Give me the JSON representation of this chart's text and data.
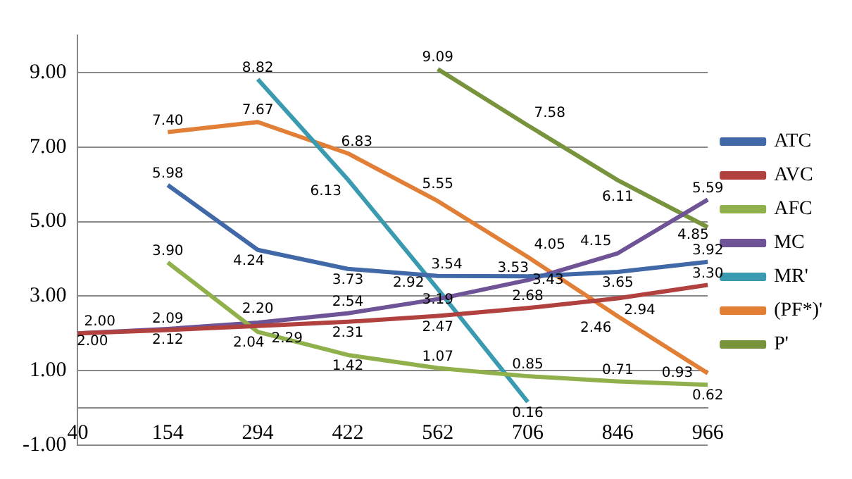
{
  "chart_data": {
    "type": "line",
    "categories": [
      "40",
      "154",
      "294",
      "422",
      "562",
      "706",
      "846",
      "966"
    ],
    "series": [
      {
        "name": "ATC",
        "color": "#4169a8",
        "values": [
          null,
          5.98,
          4.24,
          3.73,
          3.54,
          3.53,
          3.65,
          3.92
        ],
        "value_labels": [
          null,
          "5.98",
          "4.24",
          "3.73",
          "3.54",
          "3.53",
          "3.65",
          "3.92"
        ]
      },
      {
        "name": "AVC",
        "color": "#b0413e",
        "values": [
          2.0,
          2.09,
          2.2,
          2.31,
          2.47,
          2.68,
          2.94,
          3.3
        ],
        "value_labels": [
          "2.00",
          "2.09",
          "2.20",
          "2.31",
          "2.47",
          "2.68",
          "2.94",
          "3.30"
        ]
      },
      {
        "name": "AFC",
        "color": "#8fb04a",
        "values": [
          null,
          3.9,
          2.04,
          1.42,
          1.07,
          0.85,
          0.71,
          0.62
        ],
        "value_labels": [
          null,
          "3.90",
          "2.04",
          "1.42",
          "1.07",
          "0.85",
          "0.71",
          "0.62"
        ]
      },
      {
        "name": "MC",
        "color": "#6e5496",
        "values": [
          2.0,
          2.12,
          2.29,
          2.54,
          2.92,
          3.43,
          4.15,
          5.59
        ],
        "value_labels": [
          "2.00",
          "2.12",
          "2.29",
          "2.54",
          "2.92",
          "3.43",
          "4.15",
          "5.59"
        ]
      },
      {
        "name": "MR'",
        "color": "#3a9bb0",
        "values": [
          null,
          null,
          8.82,
          6.13,
          3.19,
          0.16,
          null,
          null
        ],
        "value_labels": [
          null,
          null,
          "8.82",
          "6.13",
          "3.19",
          "0.16",
          null,
          null
        ]
      },
      {
        "name": "(PF*)'",
        "color": "#e07f35",
        "values": [
          null,
          7.4,
          7.67,
          6.83,
          5.55,
          4.05,
          2.46,
          0.93
        ],
        "value_labels": [
          null,
          "7.40",
          "7.67",
          "6.83",
          "5.55",
          "4.05",
          "2.46",
          "0.93"
        ]
      },
      {
        "name": "P'",
        "color": "#77933c",
        "values": [
          null,
          null,
          null,
          null,
          9.09,
          7.58,
          6.11,
          4.85
        ],
        "value_labels": [
          null,
          null,
          null,
          null,
          "9.09",
          "7.58",
          "6.11",
          "4.85"
        ]
      }
    ],
    "ylim": [
      -1,
      10
    ],
    "yticks": [
      {
        "value": -1,
        "label": "-1.00"
      },
      {
        "value": 1,
        "label": "1.00"
      },
      {
        "value": 3,
        "label": "3.00"
      },
      {
        "value": 5,
        "label": "5.00"
      },
      {
        "value": 7,
        "label": "7.00"
      },
      {
        "value": 9,
        "label": "9.00"
      }
    ],
    "grid": "y",
    "legend": "right",
    "marker": "none",
    "line_style": "solid"
  }
}
